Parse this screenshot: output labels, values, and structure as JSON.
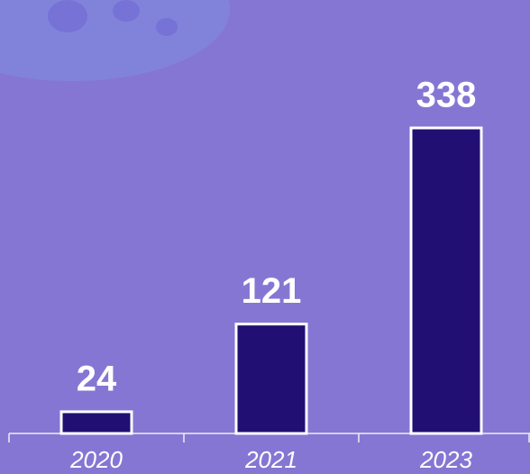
{
  "chart_data": {
    "type": "bar",
    "categories": [
      "2020",
      "2021",
      "2023"
    ],
    "values": [
      24,
      121,
      338
    ],
    "color": "#220f73"
  }
}
